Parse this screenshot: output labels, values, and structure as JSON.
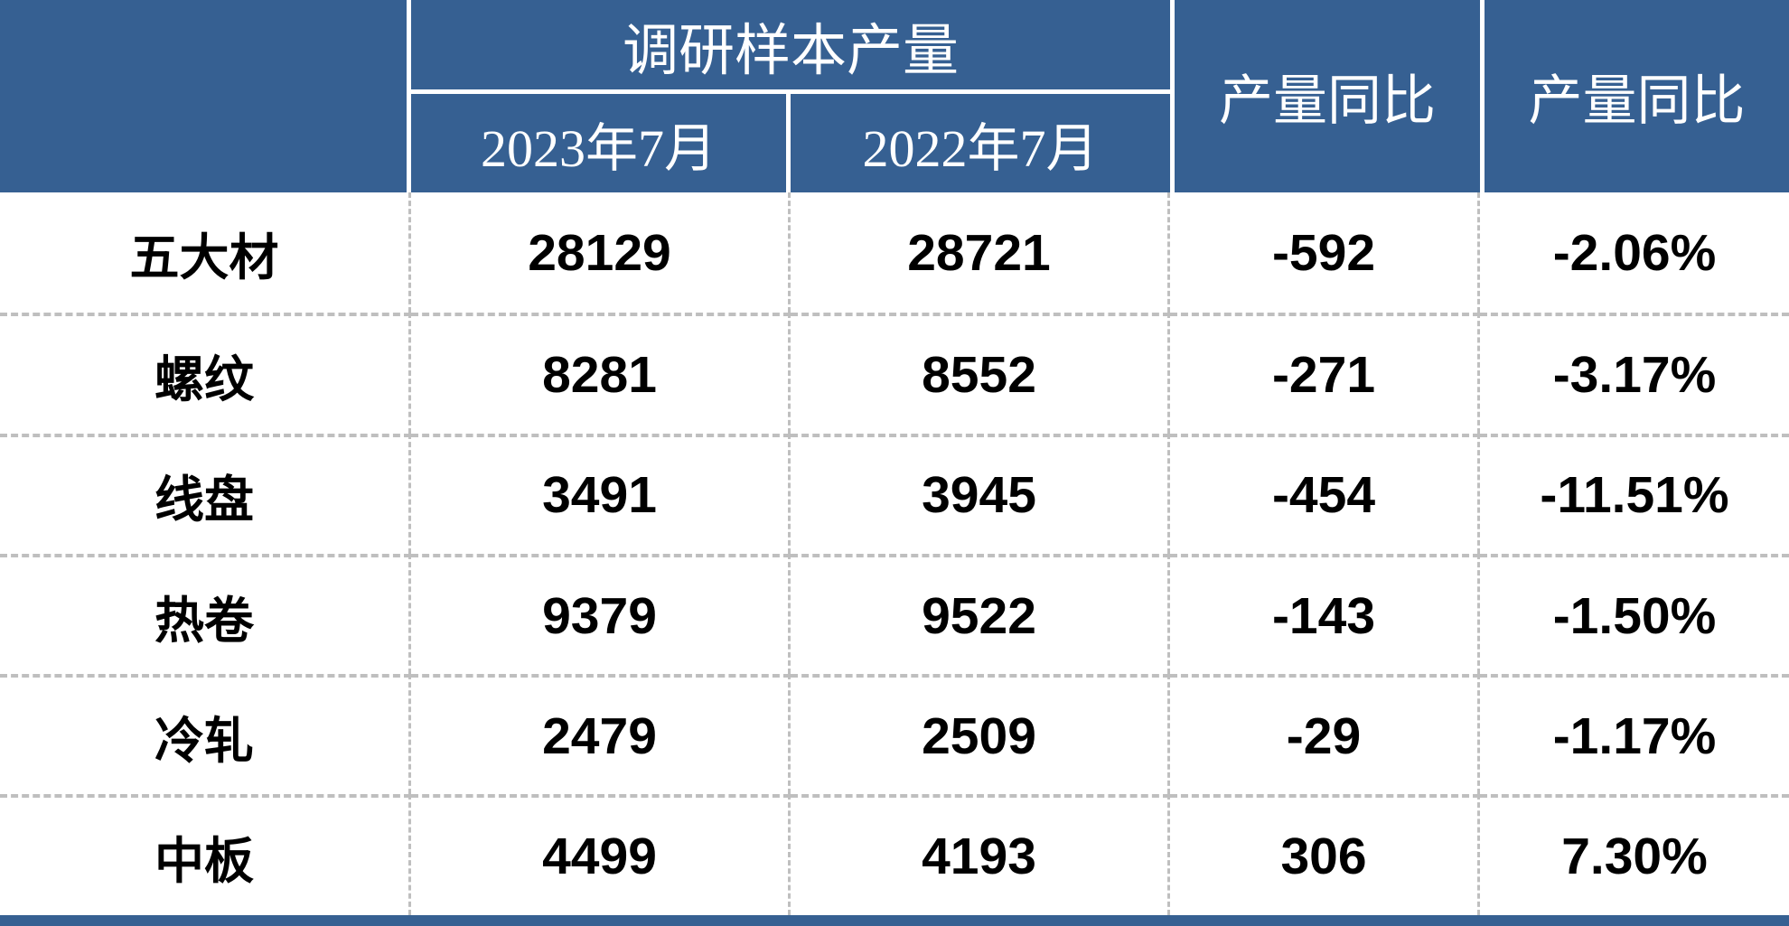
{
  "chart_data": {
    "type": "table",
    "header": {
      "corner": "",
      "group_title": "调研样本产量",
      "sub_columns": [
        "2023年7月",
        "2022年7月"
      ],
      "yoy_abs_label": "产量同比",
      "yoy_pct_label": "产量同比"
    },
    "rows": [
      {
        "label": "五大材",
        "prod_2023_07": "28129",
        "prod_2022_07": "28721",
        "yoy_abs": "-592",
        "yoy_pct": "-2.06%"
      },
      {
        "label": "螺纹",
        "prod_2023_07": "8281",
        "prod_2022_07": "8552",
        "yoy_abs": "-271",
        "yoy_pct": "-3.17%"
      },
      {
        "label": "线盘",
        "prod_2023_07": "3491",
        "prod_2022_07": "3945",
        "yoy_abs": "-454",
        "yoy_pct": "-11.51%"
      },
      {
        "label": "热卷",
        "prod_2023_07": "9379",
        "prod_2022_07": "9522",
        "yoy_abs": "-143",
        "yoy_pct": "-1.50%"
      },
      {
        "label": "冷轧",
        "prod_2023_07": "2479",
        "prod_2022_07": "2509",
        "yoy_abs": "-29",
        "yoy_pct": "-1.17%"
      },
      {
        "label": "中板",
        "prod_2023_07": "4499",
        "prod_2022_07": "4193",
        "yoy_abs": "306",
        "yoy_pct": "7.30%"
      }
    ]
  },
  "colors": {
    "header_bg": "#366092",
    "header_text": "#ffffff",
    "body_text": "#000000",
    "divider_dash": "#bfbfbf",
    "bottom_bar": "#366092"
  }
}
